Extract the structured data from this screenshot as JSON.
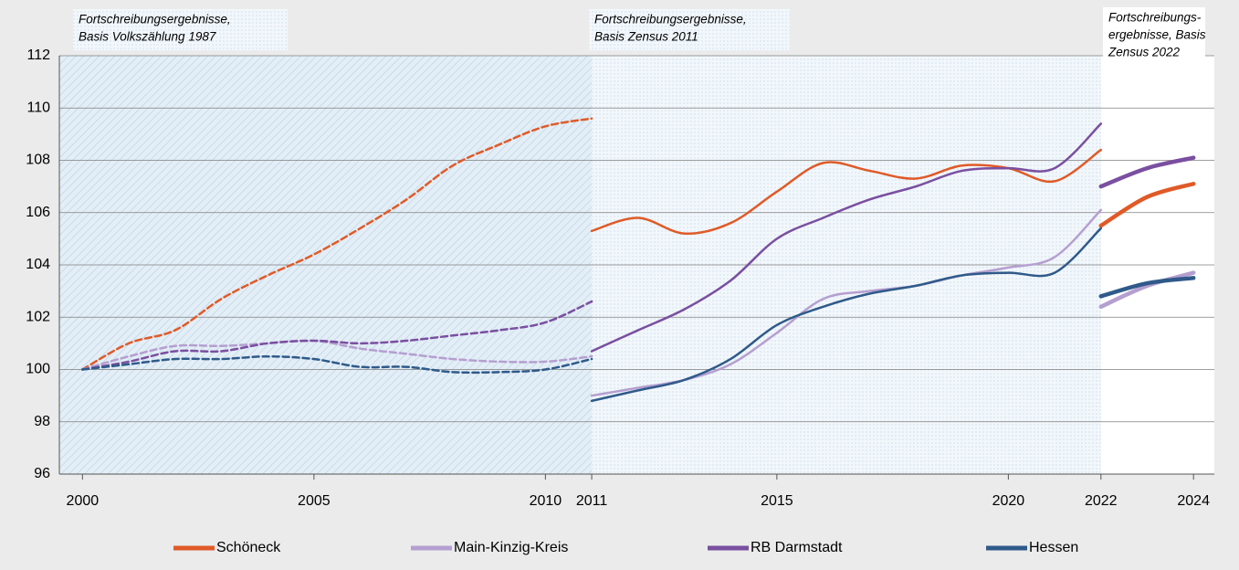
{
  "chart_data": {
    "type": "line",
    "annotations": [
      "Fortschreibungsergebnisse,",
      "Basis Volkszählung 1987",
      "Fortschreibungsergebnisse,",
      "Basis Zensus 2011",
      "Fortschreibungs-",
      "ergebnisse, Basis",
      "Zensus 2022"
    ],
    "x_segments": [
      [
        2000,
        2001,
        2002,
        2003,
        2004,
        2005,
        2006,
        2007,
        2008,
        2009,
        2010,
        2011
      ],
      [
        2011,
        2012,
        2013,
        2014,
        2015,
        2016,
        2017,
        2018,
        2019,
        2020,
        2021,
        2022
      ],
      [
        2022,
        2023,
        2024
      ]
    ],
    "line_styles": [
      "dashed",
      "solid",
      "thick"
    ],
    "series": [
      {
        "name": "Schöneck",
        "color": "#e05a28",
        "values": [
          [
            100,
            101.0,
            101.5,
            102.7,
            103.6,
            104.4,
            105.4,
            106.5,
            107.8,
            108.6,
            109.3,
            109.6
          ],
          [
            105.3,
            105.8,
            105.2,
            105.6,
            106.8,
            107.9,
            107.6,
            107.3,
            107.8,
            107.7,
            107.2,
            108.4
          ],
          [
            105.5,
            106.6,
            107.1
          ]
        ]
      },
      {
        "name": "Main-Kinzig-Kreis",
        "color": "#b59fd0",
        "values": [
          [
            100,
            100.5,
            100.9,
            100.9,
            101.0,
            101.1,
            100.8,
            100.6,
            100.4,
            100.3,
            100.3,
            100.5
          ],
          [
            99.0,
            99.3,
            99.6,
            100.2,
            101.4,
            102.7,
            103.0,
            103.2,
            103.6,
            103.9,
            104.3,
            106.1
          ],
          [
            102.4,
            103.2,
            103.7
          ]
        ]
      },
      {
        "name": "RB Darmstadt",
        "color": "#7a4fa0",
        "values": [
          [
            100,
            100.3,
            100.7,
            100.7,
            101.0,
            101.1,
            101.0,
            101.1,
            101.3,
            101.5,
            101.8,
            102.6
          ],
          [
            100.7,
            101.5,
            102.3,
            103.4,
            105.0,
            105.8,
            106.5,
            107.0,
            107.6,
            107.7,
            107.7,
            109.4
          ],
          [
            107.0,
            107.7,
            108.1
          ]
        ]
      },
      {
        "name": "Hessen",
        "color": "#2f5a8a",
        "values": [
          [
            100,
            100.2,
            100.4,
            100.4,
            100.5,
            100.4,
            100.1,
            100.1,
            99.9,
            99.9,
            100.0,
            100.4
          ],
          [
            98.8,
            99.2,
            99.6,
            100.4,
            101.7,
            102.4,
            102.9,
            103.2,
            103.6,
            103.7,
            103.7,
            105.4
          ],
          [
            102.8,
            103.3,
            103.5
          ]
        ]
      }
    ],
    "xlim": [
      1999.5,
      2024.45
    ],
    "xticks": [
      2000,
      2005,
      2010,
      2011,
      2015,
      2020,
      2022,
      2024
    ],
    "ylim": [
      96,
      112
    ],
    "yticks": [
      96,
      98,
      100,
      102,
      104,
      106,
      108,
      110,
      112
    ],
    "grid": true
  }
}
